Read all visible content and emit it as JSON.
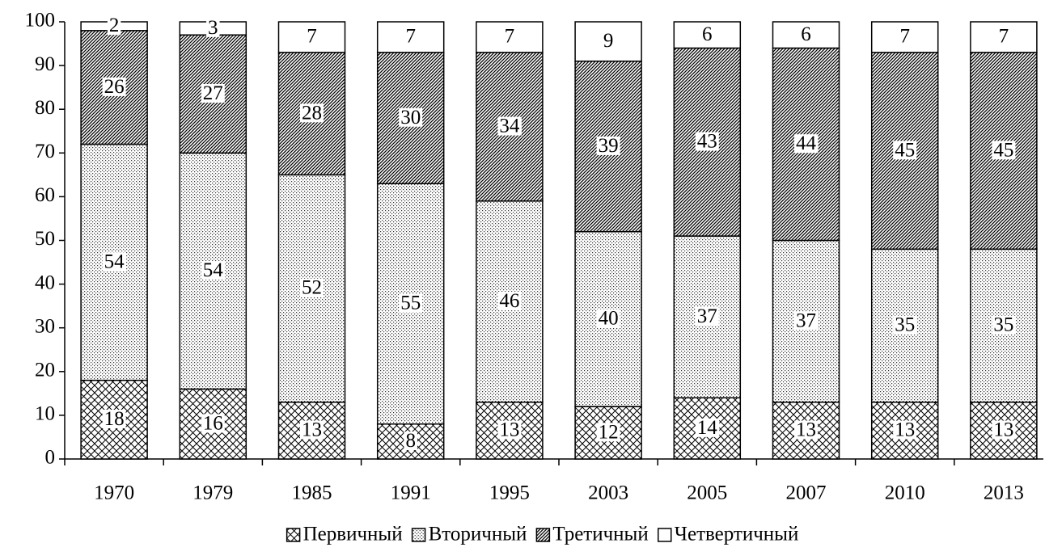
{
  "chart_data": {
    "type": "stacked_bar",
    "categories": [
      "1970",
      "1979",
      "1985",
      "1991",
      "1995",
      "2003",
      "2005",
      "2007",
      "2010",
      "2013"
    ],
    "series": [
      {
        "name": "Первичный",
        "color": "#000000",
        "pattern": "crosshatch",
        "values": [
          18,
          16,
          13,
          8,
          13,
          12,
          14,
          13,
          13,
          13
        ]
      },
      {
        "name": "Вторичный",
        "color": "#000000",
        "pattern": "dots",
        "values": [
          54,
          54,
          52,
          55,
          46,
          40,
          37,
          37,
          35,
          35
        ]
      },
      {
        "name": "Третичный",
        "color": "#000000",
        "pattern": "stripes",
        "values": [
          26,
          27,
          28,
          30,
          34,
          39,
          43,
          44,
          45,
          45
        ]
      },
      {
        "name": "Четвертичный",
        "color": "#000000",
        "pattern": "none",
        "values": [
          2,
          3,
          7,
          7,
          7,
          9,
          6,
          6,
          7,
          7
        ]
      }
    ],
    "ylim": [
      0,
      100
    ],
    "yticks": [
      0,
      10,
      20,
      30,
      40,
      50,
      60,
      70,
      80,
      90,
      100
    ],
    "grid": false,
    "legend": "bottom"
  }
}
